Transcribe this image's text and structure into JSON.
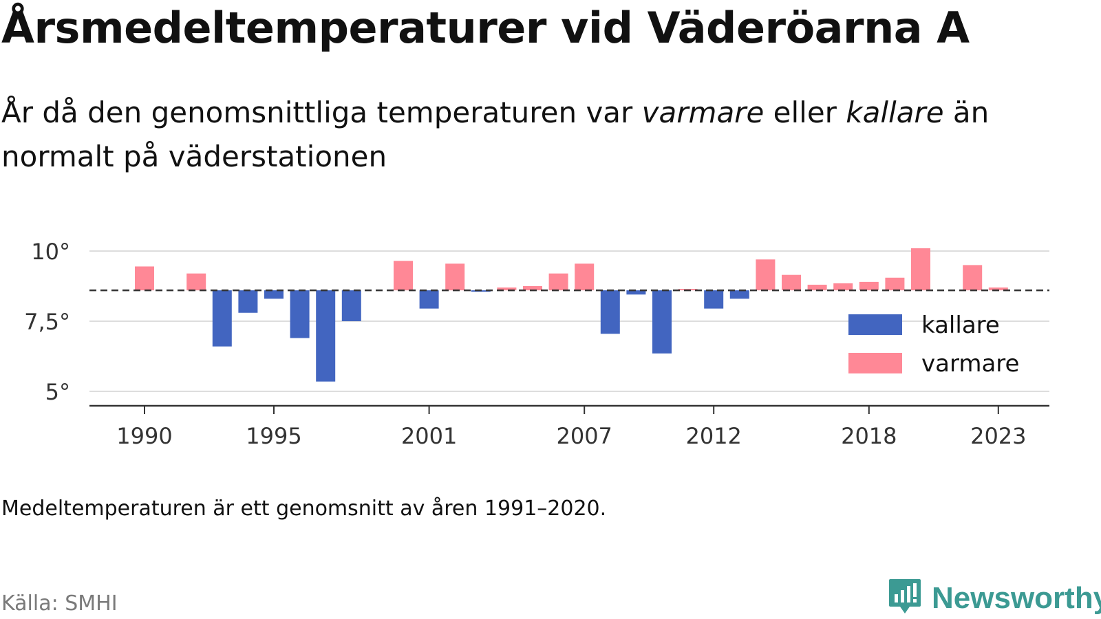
{
  "title": "Årsmedeltemperaturer vid Väderöarna A",
  "subtitle": {
    "part1": "År då den genomsnittliga temperaturen var ",
    "warm_word": "varmare",
    "part2": " eller ",
    "cold_word": "kallare",
    "part3": " än normalt på väderstationen"
  },
  "note": "Medeltemperaturen är ett genomsnitt av åren 1991–2020.",
  "source": "Källa: SMHI",
  "brand": "Newsworthy",
  "colors": {
    "cold": "#4265c0",
    "warm": "#ff8896",
    "grid": "#dddddd",
    "axis": "#333333",
    "baseline": "#333333",
    "brand": "#3c9a93"
  },
  "chart_data": {
    "type": "bar",
    "title": "Årsmedeltemperaturer vid Väderöarna A",
    "xlabel": "",
    "ylabel": "",
    "baseline": 8.6,
    "ylim": [
      4.5,
      10.5
    ],
    "yticks": [
      {
        "value": 5,
        "label": "5°"
      },
      {
        "value": 7.5,
        "label": "7,5°"
      },
      {
        "value": 10,
        "label": "10°"
      }
    ],
    "xticks": [
      1990,
      1995,
      2001,
      2007,
      2012,
      2018,
      2023
    ],
    "xlim": [
      1988,
      2025
    ],
    "grid": true,
    "legend_position": "right",
    "legend": [
      {
        "name": "kallare",
        "color": "#4265c0"
      },
      {
        "name": "varmare",
        "color": "#ff8896"
      }
    ],
    "x": [
      1990,
      1992,
      1993,
      1994,
      1995,
      1996,
      1997,
      1998,
      2000,
      2001,
      2002,
      2003,
      2004,
      2005,
      2006,
      2007,
      2008,
      2009,
      2010,
      2011,
      2012,
      2013,
      2014,
      2015,
      2016,
      2017,
      2018,
      2019,
      2020,
      2022,
      2023
    ],
    "values": [
      9.45,
      9.2,
      6.6,
      7.8,
      8.3,
      6.9,
      5.35,
      7.5,
      9.65,
      7.95,
      9.55,
      8.55,
      8.7,
      8.75,
      9.2,
      9.55,
      7.05,
      8.45,
      6.35,
      8.65,
      7.95,
      8.3,
      9.7,
      9.15,
      8.8,
      8.85,
      8.9,
      9.05,
      10.1,
      9.5,
      8.7
    ]
  }
}
